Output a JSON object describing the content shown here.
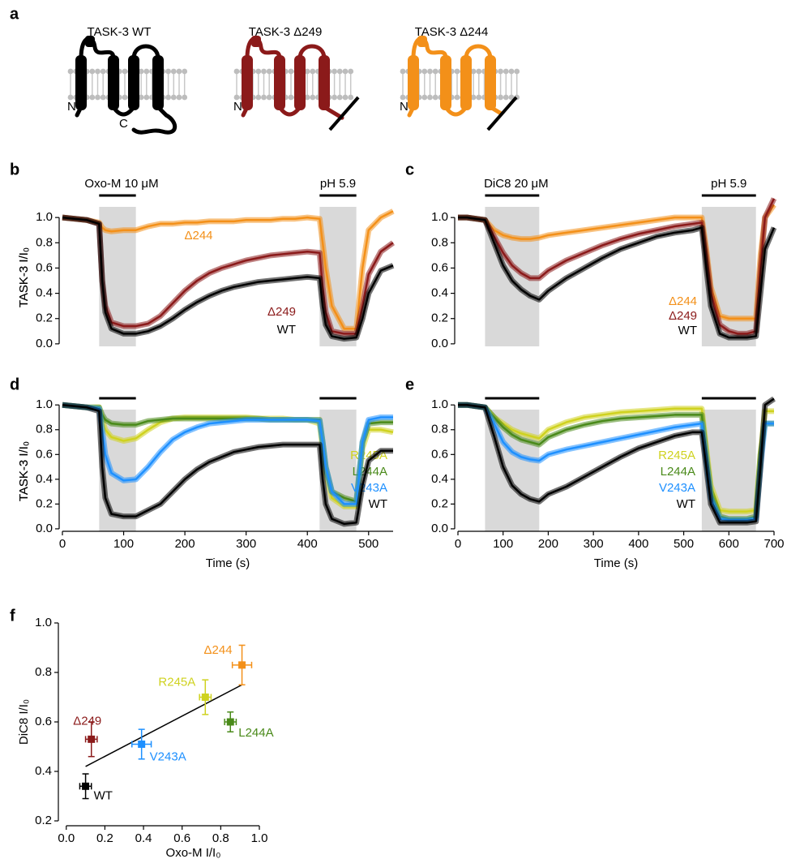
{
  "schematic": {
    "panel": "a",
    "channels": [
      {
        "title": "TASK-3 WT",
        "color": "#000000",
        "n_label": "N",
        "c_label": "C"
      },
      {
        "title": "TASK-3 Δ249",
        "color": "#8b1a1a",
        "n_label": "N"
      },
      {
        "title": "TASK-3 Δ244",
        "color": "#f39019",
        "n_label": "N"
      }
    ]
  },
  "chart_data": [
    {
      "type": "line",
      "panel": "b",
      "y_label": "TASK-3 I/I₀",
      "shading": [
        {
          "x": [
            60,
            120
          ],
          "label": "Oxo-M 10 μM"
        },
        {
          "x": [
            420,
            480
          ],
          "label": "pH 5.9"
        }
      ],
      "x": [
        0,
        20,
        40,
        60,
        65,
        70,
        80,
        100,
        120,
        140,
        160,
        180,
        200,
        220,
        240,
        260,
        280,
        300,
        320,
        340,
        360,
        380,
        400,
        420,
        425,
        430,
        440,
        460,
        480,
        490,
        500,
        520,
        540
      ],
      "series": [
        {
          "name": "Δ244",
          "color": "#f39019",
          "values": [
            1.0,
            0.99,
            0.98,
            0.96,
            0.92,
            0.9,
            0.89,
            0.9,
            0.9,
            0.93,
            0.95,
            0.95,
            0.96,
            0.96,
            0.97,
            0.97,
            0.97,
            0.98,
            0.98,
            0.98,
            0.99,
            0.99,
            1.0,
            0.99,
            0.8,
            0.6,
            0.3,
            0.12,
            0.12,
            0.6,
            0.9,
            1.0,
            1.05
          ]
        },
        {
          "name": "Δ249",
          "color": "#8b1a1a",
          "values": [
            1.0,
            0.99,
            0.98,
            0.95,
            0.5,
            0.3,
            0.17,
            0.14,
            0.14,
            0.16,
            0.22,
            0.32,
            0.42,
            0.5,
            0.56,
            0.6,
            0.63,
            0.66,
            0.68,
            0.7,
            0.71,
            0.72,
            0.73,
            0.72,
            0.45,
            0.25,
            0.1,
            0.08,
            0.08,
            0.3,
            0.55,
            0.73,
            0.8
          ]
        },
        {
          "name": "WT",
          "color": "#000000",
          "values": [
            1.0,
            0.99,
            0.98,
            0.95,
            0.5,
            0.25,
            0.12,
            0.08,
            0.08,
            0.1,
            0.14,
            0.2,
            0.27,
            0.33,
            0.38,
            0.42,
            0.45,
            0.47,
            0.49,
            0.5,
            0.51,
            0.52,
            0.53,
            0.52,
            0.3,
            0.15,
            0.06,
            0.04,
            0.05,
            0.2,
            0.4,
            0.58,
            0.62
          ]
        }
      ],
      "xlim": [
        0,
        540
      ],
      "ylim": [
        -0.02,
        1.2
      ],
      "yticks": [
        {
          "value": 0,
          "label": "0.0"
        },
        0.2,
        0.4,
        0.6,
        0.8,
        {
          "value": 1,
          "label": "1.0"
        }
      ]
    },
    {
      "type": "line",
      "panel": "c",
      "y_label": "TASK-3 I/I₀",
      "shading": [
        {
          "x": [
            60,
            180
          ],
          "label": "DiC8 20 μM"
        },
        {
          "x": [
            540,
            660
          ],
          "label": "pH 5.9"
        }
      ],
      "x": [
        0,
        20,
        40,
        60,
        80,
        100,
        120,
        140,
        160,
        180,
        200,
        240,
        280,
        320,
        360,
        400,
        440,
        480,
        520,
        540,
        550,
        560,
        580,
        600,
        620,
        640,
        660,
        670,
        680,
        700
      ],
      "series": [
        {
          "name": "Δ244",
          "color": "#f39019",
          "values": [
            1,
            1,
            0.99,
            0.98,
            0.9,
            0.86,
            0.84,
            0.83,
            0.83,
            0.84,
            0.86,
            0.88,
            0.9,
            0.92,
            0.94,
            0.96,
            0.98,
            1.0,
            1.0,
            1.0,
            0.75,
            0.45,
            0.22,
            0.2,
            0.2,
            0.2,
            0.2,
            0.7,
            1.0,
            1.1
          ]
        },
        {
          "name": "Δ249",
          "color": "#8b1a1a",
          "values": [
            1,
            1,
            0.99,
            0.98,
            0.85,
            0.72,
            0.62,
            0.56,
            0.52,
            0.52,
            0.58,
            0.66,
            0.72,
            0.78,
            0.83,
            0.87,
            0.9,
            0.93,
            0.95,
            0.96,
            0.7,
            0.4,
            0.15,
            0.1,
            0.08,
            0.08,
            0.1,
            0.6,
            1.0,
            1.15
          ]
        },
        {
          "name": "WT",
          "color": "#000000",
          "values": [
            1,
            1,
            0.99,
            0.98,
            0.8,
            0.62,
            0.5,
            0.43,
            0.38,
            0.35,
            0.42,
            0.52,
            0.6,
            0.68,
            0.75,
            0.8,
            0.85,
            0.88,
            0.9,
            0.92,
            0.6,
            0.3,
            0.08,
            0.05,
            0.05,
            0.05,
            0.06,
            0.4,
            0.75,
            0.92
          ]
        }
      ],
      "xlim": [
        0,
        700
      ],
      "ylim": [
        -0.02,
        1.2
      ],
      "yticks": [
        {
          "value": 0,
          "label": "0.0"
        },
        0.2,
        0.4,
        0.6,
        0.8,
        {
          "value": 1,
          "label": "1.0"
        }
      ]
    },
    {
      "type": "line",
      "panel": "d",
      "y_label": "TASK-3 I/I₀",
      "x_label": "Time (s)",
      "shading": [
        {
          "x": [
            60,
            120
          ]
        },
        {
          "x": [
            420,
            480
          ]
        }
      ],
      "x": [
        0,
        20,
        40,
        60,
        65,
        70,
        80,
        100,
        120,
        140,
        160,
        180,
        200,
        220,
        240,
        260,
        280,
        300,
        320,
        340,
        360,
        380,
        400,
        420,
        425,
        430,
        440,
        460,
        480,
        490,
        500,
        520,
        540
      ],
      "series": [
        {
          "name": "R245A",
          "color": "#cfd21f",
          "values": [
            1.0,
            0.99,
            0.98,
            0.98,
            0.88,
            0.8,
            0.74,
            0.71,
            0.73,
            0.8,
            0.86,
            0.89,
            0.9,
            0.9,
            0.9,
            0.9,
            0.9,
            0.9,
            0.89,
            0.89,
            0.89,
            0.88,
            0.88,
            0.85,
            0.65,
            0.45,
            0.25,
            0.18,
            0.18,
            0.65,
            0.8,
            0.8,
            0.78
          ]
        },
        {
          "name": "L244A",
          "color": "#4a8a1a",
          "values": [
            1.0,
            0.99,
            0.98,
            0.98,
            0.92,
            0.88,
            0.85,
            0.84,
            0.84,
            0.87,
            0.88,
            0.89,
            0.89,
            0.89,
            0.89,
            0.89,
            0.89,
            0.89,
            0.89,
            0.88,
            0.88,
            0.88,
            0.88,
            0.88,
            0.7,
            0.5,
            0.3,
            0.25,
            0.22,
            0.7,
            0.85,
            0.86,
            0.86
          ]
        },
        {
          "name": "V243A",
          "color": "#1e90ff",
          "values": [
            1.0,
            0.99,
            0.98,
            0.97,
            0.8,
            0.6,
            0.45,
            0.39,
            0.4,
            0.5,
            0.62,
            0.72,
            0.78,
            0.82,
            0.85,
            0.86,
            0.87,
            0.88,
            0.88,
            0.88,
            0.88,
            0.88,
            0.88,
            0.87,
            0.7,
            0.5,
            0.3,
            0.2,
            0.2,
            0.7,
            0.88,
            0.9,
            0.9
          ]
        },
        {
          "name": "WT",
          "color": "#000000",
          "values": [
            1.0,
            0.99,
            0.98,
            0.95,
            0.5,
            0.25,
            0.12,
            0.1,
            0.1,
            0.15,
            0.2,
            0.3,
            0.4,
            0.48,
            0.54,
            0.58,
            0.62,
            0.64,
            0.66,
            0.67,
            0.68,
            0.68,
            0.68,
            0.68,
            0.4,
            0.2,
            0.08,
            0.04,
            0.05,
            0.35,
            0.55,
            0.63,
            0.63
          ]
        }
      ],
      "xlim": [
        0,
        540
      ],
      "ylim": [
        -0.02,
        1.08
      ],
      "xticks": [
        0,
        100,
        200,
        300,
        400,
        500
      ],
      "yticks": [
        {
          "value": 0,
          "label": "0.0"
        },
        0.2,
        0.4,
        0.6,
        0.8,
        {
          "value": 1,
          "label": "1.0"
        }
      ]
    },
    {
      "type": "line",
      "panel": "e",
      "y_label": "TASK-3 I/I₀",
      "x_label": "Time (s)",
      "shading": [
        {
          "x": [
            60,
            180
          ]
        },
        {
          "x": [
            540,
            660
          ]
        }
      ],
      "x": [
        0,
        20,
        40,
        60,
        80,
        100,
        120,
        140,
        160,
        180,
        200,
        240,
        280,
        320,
        360,
        400,
        440,
        480,
        520,
        540,
        550,
        560,
        580,
        600,
        620,
        640,
        660,
        670,
        680,
        700
      ],
      "series": [
        {
          "name": "R245A",
          "color": "#cfd21f",
          "values": [
            1,
            1,
            0.99,
            0.98,
            0.9,
            0.85,
            0.8,
            0.77,
            0.75,
            0.73,
            0.8,
            0.86,
            0.9,
            0.92,
            0.94,
            0.95,
            0.96,
            0.97,
            0.97,
            0.97,
            0.65,
            0.35,
            0.15,
            0.14,
            0.14,
            0.14,
            0.15,
            0.6,
            0.95,
            0.95
          ]
        },
        {
          "name": "L244A",
          "color": "#4a8a1a",
          "values": [
            1,
            1,
            0.99,
            0.98,
            0.9,
            0.82,
            0.76,
            0.72,
            0.7,
            0.68,
            0.74,
            0.8,
            0.84,
            0.87,
            0.89,
            0.9,
            0.91,
            0.92,
            0.92,
            0.92,
            0.6,
            0.3,
            0.1,
            0.08,
            0.08,
            0.08,
            0.1,
            0.6,
            0.85,
            0.85
          ]
        },
        {
          "name": "V243A",
          "color": "#1e90ff",
          "values": [
            1,
            1,
            0.99,
            0.98,
            0.85,
            0.7,
            0.62,
            0.58,
            0.56,
            0.55,
            0.6,
            0.64,
            0.67,
            0.7,
            0.73,
            0.76,
            0.79,
            0.82,
            0.84,
            0.85,
            0.55,
            0.25,
            0.08,
            0.07,
            0.07,
            0.07,
            0.08,
            0.5,
            0.85,
            0.85
          ]
        },
        {
          "name": "WT",
          "color": "#000000",
          "values": [
            1,
            1,
            0.99,
            0.98,
            0.75,
            0.5,
            0.35,
            0.28,
            0.24,
            0.22,
            0.28,
            0.34,
            0.42,
            0.5,
            0.58,
            0.65,
            0.7,
            0.75,
            0.78,
            0.78,
            0.5,
            0.2,
            0.05,
            0.05,
            0.05,
            0.05,
            0.06,
            0.5,
            1.0,
            1.05
          ]
        }
      ],
      "xlim": [
        0,
        700
      ],
      "ylim": [
        -0.02,
        1.08
      ],
      "xticks": [
        0,
        100,
        200,
        300,
        400,
        500,
        600,
        700
      ],
      "yticks": [
        {
          "value": 0,
          "label": "0.0"
        },
        0.2,
        0.4,
        0.6,
        0.8,
        {
          "value": 1,
          "label": "1.0"
        }
      ]
    },
    {
      "type": "scatter",
      "panel": "f",
      "x_label": "Oxo-M I/I₀",
      "y_label": "DiC8 I/I₀",
      "points": [
        {
          "name": "WT",
          "color": "#000000",
          "x": 0.1,
          "y": 0.34,
          "xerr": 0.03,
          "yerr": 0.05
        },
        {
          "name": "Δ249",
          "color": "#8b1a1a",
          "x": 0.13,
          "y": 0.53,
          "xerr": 0.03,
          "yerr": 0.07
        },
        {
          "name": "V243A",
          "color": "#1e90ff",
          "x": 0.39,
          "y": 0.51,
          "xerr": 0.05,
          "yerr": 0.06
        },
        {
          "name": "R245A",
          "color": "#cfd21f",
          "x": 0.72,
          "y": 0.7,
          "xerr": 0.03,
          "yerr": 0.07
        },
        {
          "name": "L244A",
          "color": "#4a8a1a",
          "x": 0.85,
          "y": 0.6,
          "xerr": 0.03,
          "yerr": 0.04
        },
        {
          "name": "Δ244",
          "color": "#f39019",
          "x": 0.91,
          "y": 0.83,
          "xerr": 0.05,
          "yerr": 0.08
        }
      ],
      "fit_line": {
        "x": [
          0.1,
          0.91
        ],
        "y": [
          0.42,
          0.75
        ]
      },
      "xlim": [
        -0.02,
        1.0
      ],
      "ylim": [
        0.2,
        1.0
      ],
      "xticks": [
        {
          "value": 0,
          "label": "0.0"
        },
        0.2,
        0.4,
        0.6,
        0.8,
        {
          "value": 1,
          "label": "1.0"
        }
      ],
      "yticks": [
        0.2,
        0.4,
        0.6,
        0.8,
        {
          "value": 1,
          "label": "1.0"
        }
      ]
    }
  ]
}
